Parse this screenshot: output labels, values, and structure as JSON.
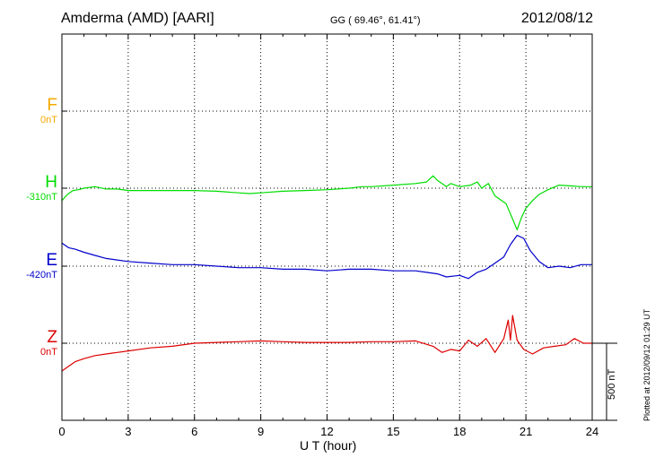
{
  "header": {
    "station": "Amderma (AMD)  [AARI]",
    "coords": "GG ( 69.46°,  61.41°)",
    "date": "2012/08/12"
  },
  "plotted_note": "Plotted at 2012/09/12 01:29 UT",
  "scale_bar_label": "500 nT",
  "chart_data": {
    "type": "line",
    "xlabel": "U T (hour)",
    "xlim": [
      0,
      24
    ],
    "xticks": [
      0,
      3,
      6,
      9,
      12,
      15,
      18,
      21,
      24
    ],
    "xtick_labels": [
      "0",
      "3",
      "6",
      "9",
      "12",
      "15",
      "18",
      "21",
      "24"
    ],
    "grid": true,
    "scale_bar_nT": 500,
    "series": [
      {
        "name": "F",
        "baseline_label": "0nT",
        "color": "#f5a800",
        "baseline_index": 0,
        "x": [],
        "y": []
      },
      {
        "name": "H",
        "baseline_label": "-310nT",
        "color": "#00dd00",
        "baseline_index": 1,
        "x": [
          0,
          0.25,
          0.5,
          0.75,
          1,
          1.5,
          2,
          2.5,
          3,
          4,
          5,
          6,
          7,
          8,
          8.5,
          9,
          10,
          11,
          12,
          13,
          13.6,
          14,
          15,
          16,
          16.5,
          16.8,
          17,
          17.2,
          17.4,
          17.6,
          18,
          18.5,
          18.8,
          19,
          19.3,
          19.6,
          19.9,
          20.1,
          20.4,
          20.6,
          20.8,
          21,
          21.3,
          21.6,
          22,
          22.5,
          23,
          23.5,
          24
        ],
        "y": [
          -80,
          -40,
          -15,
          -10,
          0,
          10,
          -5,
          -5,
          -15,
          -15,
          -15,
          -15,
          -20,
          -30,
          -35,
          -30,
          -20,
          -15,
          -10,
          0,
          10,
          10,
          20,
          30,
          40,
          80,
          50,
          30,
          10,
          30,
          10,
          20,
          40,
          0,
          30,
          -50,
          -80,
          -100,
          -200,
          -270,
          -190,
          -130,
          -80,
          -40,
          -10,
          20,
          15,
          10,
          10
        ]
      },
      {
        "name": "E",
        "baseline_label": "-420nT",
        "color": "#0000cc",
        "baseline_index": 2,
        "x": [
          0,
          0.3,
          0.6,
          1,
          1.5,
          2,
          3,
          4,
          5,
          6,
          7,
          8,
          9,
          10,
          11,
          12,
          13,
          14,
          15,
          16,
          16.5,
          17,
          17.4,
          18,
          18.4,
          18.8,
          19.2,
          19.6,
          20,
          20.3,
          20.6,
          20.9,
          21.2,
          21.6,
          22,
          22.5,
          23,
          23.5,
          24
        ],
        "y": [
          150,
          120,
          110,
          90,
          70,
          50,
          30,
          20,
          10,
          10,
          0,
          -10,
          -10,
          -20,
          -20,
          -30,
          -20,
          -20,
          -30,
          -30,
          -40,
          -50,
          -70,
          -60,
          -80,
          -40,
          -20,
          20,
          60,
          140,
          200,
          180,
          100,
          30,
          -10,
          0,
          -10,
          10,
          10
        ]
      },
      {
        "name": "Z",
        "baseline_label": "0nT",
        "color": "#dd0000",
        "baseline_index": 3,
        "x": [
          0,
          0.3,
          0.6,
          1,
          1.5,
          2,
          3,
          4,
          5,
          6,
          7,
          8,
          9,
          10,
          11,
          12,
          13,
          14,
          15,
          16,
          16.8,
          17.2,
          17.6,
          18,
          18.4,
          18.8,
          19.2,
          19.6,
          20,
          20.2,
          20.3,
          20.4,
          20.6,
          20.9,
          21.3,
          21.8,
          22.3,
          22.8,
          23.2,
          23.6,
          24
        ],
        "y": [
          -180,
          -150,
          -120,
          -100,
          -80,
          -70,
          -50,
          -30,
          -20,
          0,
          5,
          10,
          15,
          10,
          5,
          5,
          5,
          10,
          10,
          15,
          -20,
          -60,
          -40,
          -50,
          20,
          -20,
          30,
          -60,
          30,
          150,
          20,
          180,
          20,
          -40,
          -70,
          -30,
          -20,
          -10,
          30,
          0,
          0
        ]
      }
    ]
  }
}
